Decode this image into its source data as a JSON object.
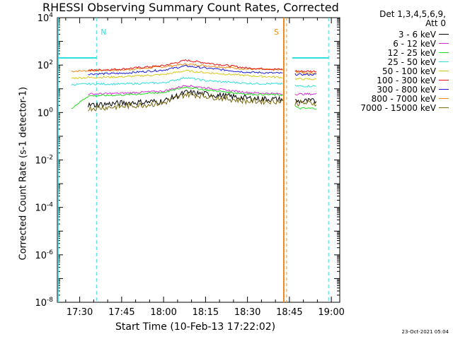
{
  "title": "RHESSI Observing Summary Count Rates, Corrected",
  "xlabel": "Start Time (10-Feb-13 17:22:02)",
  "ylabel_html": "Corrected Count Rate (s<tspan baseline-shift='super' font-size='9'>-1</tspan> detector<tspan baseline-shift='super' font-size='9'>-1</tspan>)",
  "ylabel": "Corrected Count Rate (s-1 detector-1)",
  "timestamp": "23-Oct-2021 05:04",
  "legend_header": [
    "Det 1,3,4,5,6,9,",
    "Att 0"
  ],
  "legend": [
    {
      "label": "3 - 6 keV",
      "color": "#000000"
    },
    {
      "label": "6 - 12 keV",
      "color": "#d62fd6"
    },
    {
      "label": "12 - 25 keV",
      "color": "#22dd22"
    },
    {
      "label": "25 - 50 keV",
      "color": "#33dddd"
    },
    {
      "label": "50 - 100 keV",
      "color": "#d8c81a"
    },
    {
      "label": "100 - 300 keV",
      "color": "#e81010"
    },
    {
      "label": "300 - 800 keV",
      "color": "#1a1ad6"
    },
    {
      "label": "800 - 7000 keV",
      "color": "#ee8a1a"
    },
    {
      "label": "7000 - 15000 keV",
      "color": "#7a6a10"
    }
  ],
  "chart_data": {
    "type": "line",
    "title": "RHESSI Observing Summary Count Rates, Corrected",
    "xlabel": "Start Time (10-Feb-13 17:22:02)",
    "ylabel": "Corrected Count Rate (s-1 detector-1)",
    "x_ticks": [
      "17:30",
      "17:45",
      "18:00",
      "18:15",
      "18:30",
      "18:45",
      "19:00"
    ],
    "y_ticks": [
      "10^-8",
      "10^-6",
      "10^-4",
      "10^-2",
      "10^0",
      "10^2",
      "10^4"
    ],
    "y_scale": "log",
    "xlim": [
      "17:22",
      "19:03"
    ],
    "ylim": [
      1e-08,
      10000.0
    ],
    "annotations": [
      {
        "text": "N",
        "time": "17:36"
      },
      {
        "text": "S",
        "time": "18:43"
      }
    ],
    "series": [
      {
        "name": "800 - 7000 keV",
        "points": [
          [
            "17:27",
            55
          ],
          [
            "17:33",
            58
          ],
          [
            "17:45",
            62
          ],
          [
            "18:00",
            85
          ],
          [
            "18:08",
            110
          ],
          [
            "18:15",
            95
          ],
          [
            "18:30",
            68
          ],
          [
            "18:43",
            62
          ],
          [
            "18:48",
            50
          ],
          [
            "18:55",
            45
          ]
        ]
      },
      {
        "name": "100 - 300 keV",
        "points": [
          [
            "17:33",
            60
          ],
          [
            "17:45",
            68
          ],
          [
            "18:00",
            95
          ],
          [
            "18:08",
            160
          ],
          [
            "18:15",
            125
          ],
          [
            "18:30",
            75
          ],
          [
            "18:43",
            65
          ],
          [
            "18:48",
            55
          ],
          [
            "18:55",
            55
          ]
        ]
      },
      {
        "name": "300 - 800 keV",
        "points": [
          [
            "17:33",
            42
          ],
          [
            "17:45",
            45
          ],
          [
            "18:00",
            62
          ],
          [
            "18:08",
            92
          ],
          [
            "18:15",
            75
          ],
          [
            "18:30",
            50
          ],
          [
            "18:43",
            45
          ],
          [
            "18:48",
            40
          ],
          [
            "18:55",
            40
          ]
        ]
      },
      {
        "name": "50 - 100 keV",
        "points": [
          [
            "17:27",
            28
          ],
          [
            "17:33",
            30
          ],
          [
            "17:45",
            32
          ],
          [
            "18:00",
            40
          ],
          [
            "18:08",
            58
          ],
          [
            "18:15",
            48
          ],
          [
            "18:30",
            36
          ],
          [
            "18:43",
            30
          ],
          [
            "18:48",
            26
          ],
          [
            "18:55",
            25
          ]
        ]
      },
      {
        "name": "25 - 50 keV",
        "points": [
          [
            "17:27",
            15
          ],
          [
            "17:33",
            16
          ],
          [
            "17:45",
            16
          ],
          [
            "18:00",
            18
          ],
          [
            "18:08",
            30
          ],
          [
            "18:15",
            22
          ],
          [
            "18:30",
            17
          ],
          [
            "18:43",
            16
          ],
          [
            "18:48",
            13
          ],
          [
            "18:55",
            13
          ]
        ]
      },
      {
        "name": "6 - 12 keV",
        "points": [
          [
            "17:33",
            6
          ],
          [
            "17:45",
            6.5
          ],
          [
            "18:00",
            8
          ],
          [
            "18:08",
            14
          ],
          [
            "18:15",
            11
          ],
          [
            "18:30",
            7
          ],
          [
            "18:43",
            6
          ],
          [
            "18:48",
            6
          ],
          [
            "18:55",
            6
          ]
        ]
      },
      {
        "name": "12 - 25 keV",
        "points": [
          [
            "17:27",
            1.5
          ],
          [
            "17:33",
            5
          ],
          [
            "17:45",
            5.5
          ],
          [
            "18:00",
            7
          ],
          [
            "18:08",
            12
          ],
          [
            "18:15",
            9
          ],
          [
            "18:30",
            6
          ],
          [
            "18:43",
            5.5
          ],
          [
            "18:48",
            1.5
          ],
          [
            "18:55",
            1.5
          ]
        ]
      },
      {
        "name": "3 - 6 keV",
        "points": [
          [
            "17:33",
            2
          ],
          [
            "17:45",
            2.5
          ],
          [
            "18:00",
            3
          ],
          [
            "18:08",
            7
          ],
          [
            "18:15",
            6
          ],
          [
            "18:30",
            4
          ],
          [
            "18:43",
            3.5
          ],
          [
            "18:48",
            3
          ],
          [
            "18:55",
            3
          ]
        ]
      },
      {
        "name": "7000 - 15000 keV",
        "points": [
          [
            "17:33",
            1.5
          ],
          [
            "17:45",
            1.8
          ],
          [
            "18:00",
            2.5
          ],
          [
            "18:08",
            6
          ],
          [
            "18:15",
            5
          ],
          [
            "18:30",
            3
          ],
          [
            "18:43",
            3
          ],
          [
            "18:48",
            2.5
          ],
          [
            "18:55",
            2.5
          ]
        ]
      }
    ]
  }
}
